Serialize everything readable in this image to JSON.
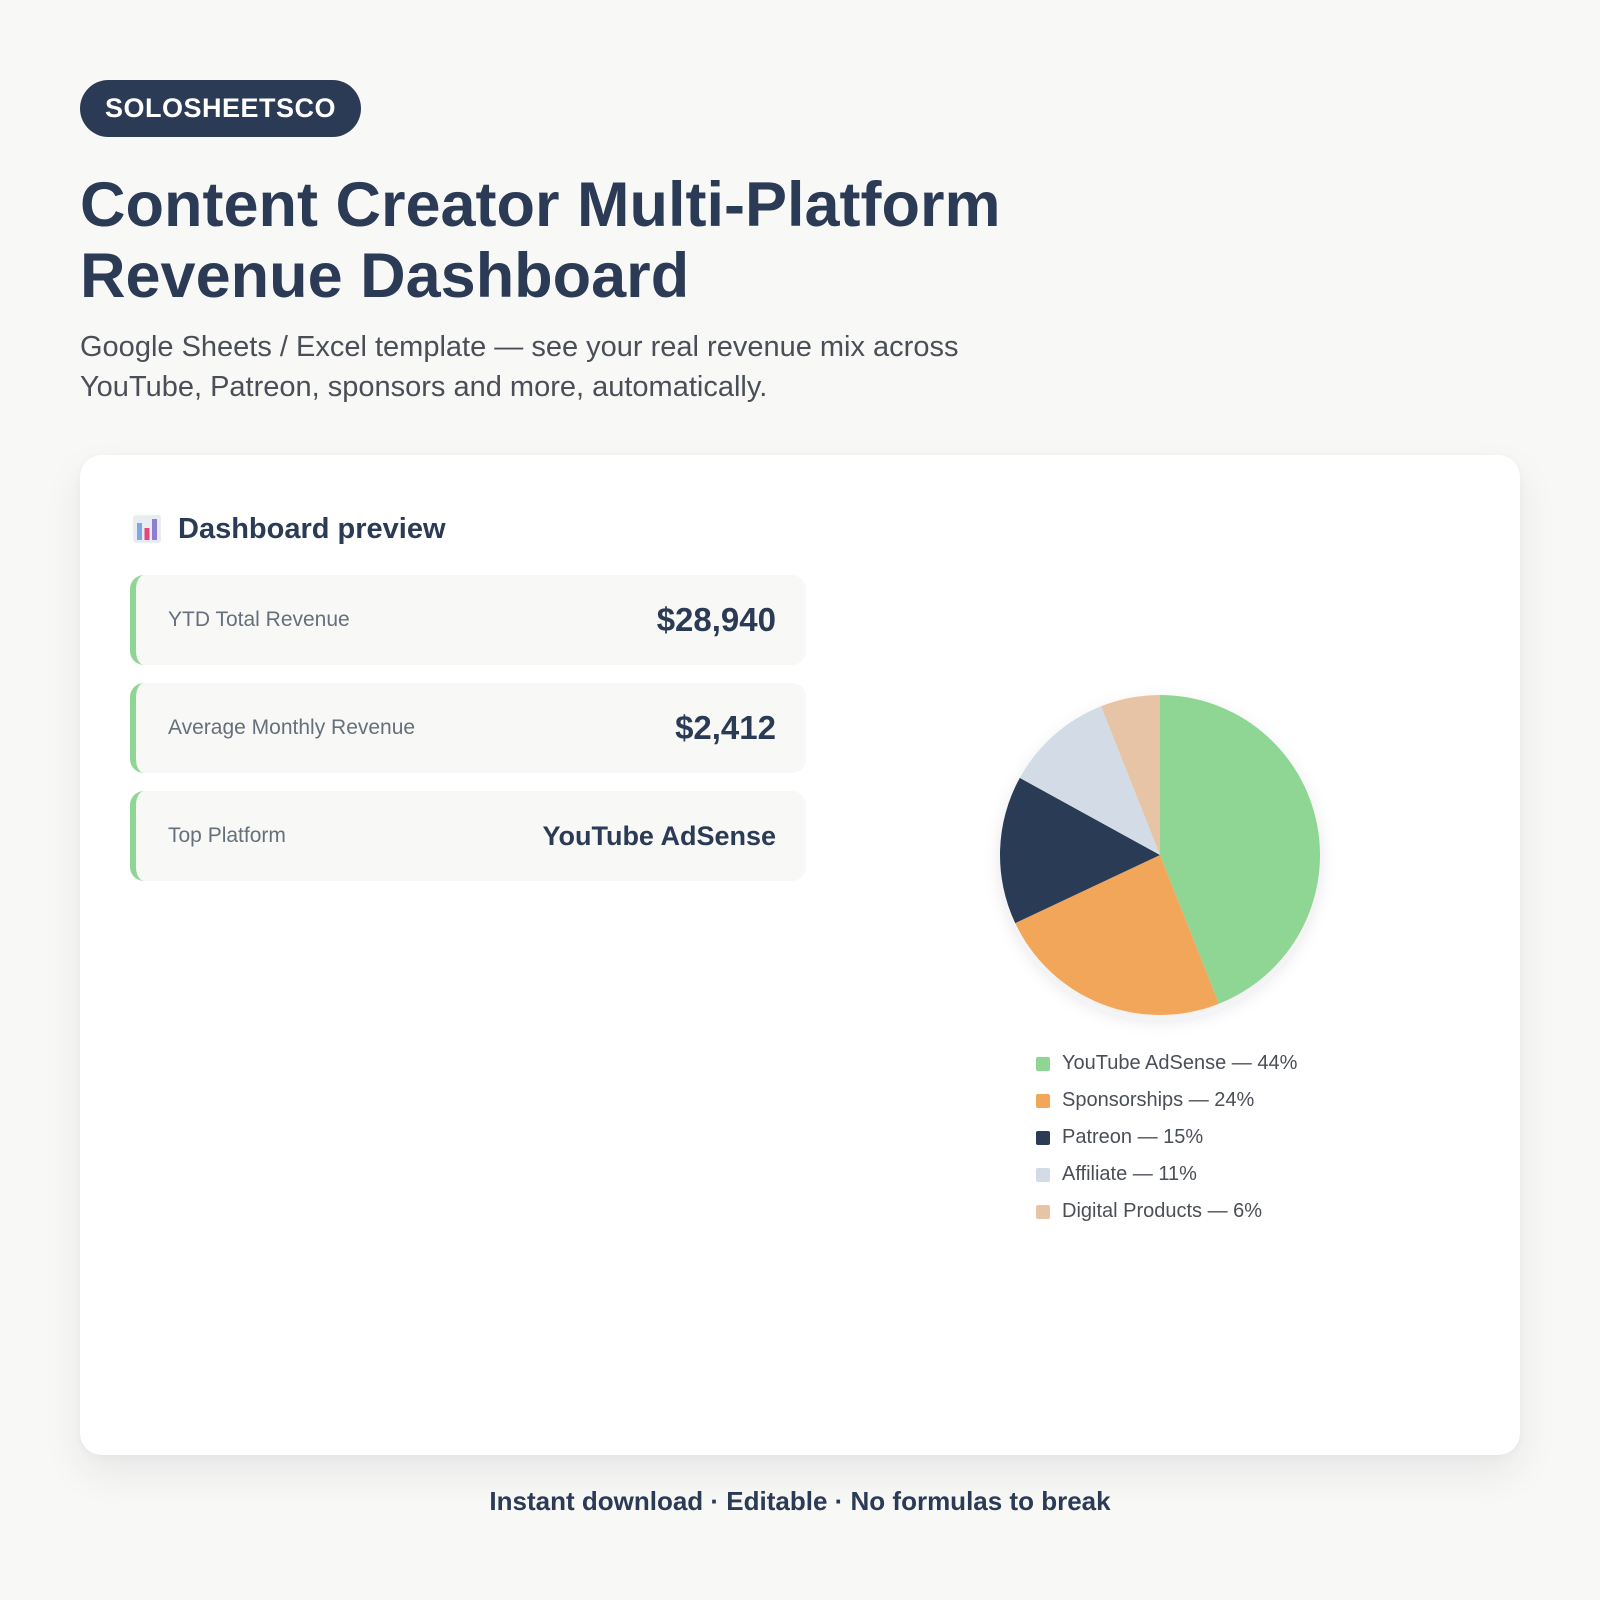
{
  "brand": {
    "name": "SOLOSHEETSCO"
  },
  "hero": {
    "title_line1": "Content Creator Multi-Platform",
    "title_line2": "Revenue Dashboard",
    "subtitle_line1": "Google Sheets / Excel template — see your real revenue mix across",
    "subtitle_line2": "YouTube, Patreon, sponsors and more, automatically."
  },
  "card": {
    "icon": "bar-chart-icon",
    "title": "Dashboard preview",
    "kpis": [
      {
        "label": "YTD Total Revenue",
        "value": "$28,940"
      },
      {
        "label": "Average Monthly Revenue",
        "value": "$2,412"
      },
      {
        "label": "Top Platform",
        "value": "YouTube AdSense"
      }
    ]
  },
  "colors": {
    "navy": "#2b3a55",
    "kpi_accent": "#8fd694",
    "background": "#f8f8f6"
  },
  "chart_data": {
    "type": "pie",
    "categories": [
      "YouTube AdSense",
      "Sponsorships",
      "Patreon",
      "Affiliate",
      "Digital Products"
    ],
    "values": [
      44,
      24,
      15,
      11,
      6
    ],
    "colors": [
      "#8fd694",
      "#f2a65a",
      "#2b3a55",
      "#d3dce6",
      "#e8c4a6"
    ],
    "legend_labels": [
      "YouTube AdSense — 44%",
      "Sponsorships — 24%",
      "Patreon — 15%",
      "Affiliate — 11%",
      "Digital Products — 6%"
    ],
    "legend_position": "bottom"
  },
  "footer": {
    "tagline": "Instant download · Editable · No formulas to break"
  }
}
